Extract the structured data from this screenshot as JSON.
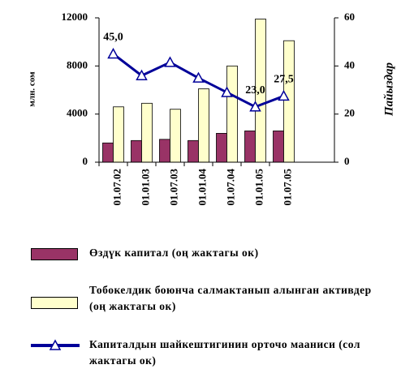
{
  "chart_data": {
    "type": "bar_line",
    "y_label": "млн. сом",
    "y2_label": "Пайыздар",
    "categories": [
      "01.07.02",
      "01.01.03",
      "01.07.03",
      "01.01.04",
      "01.07.04",
      "01.01.05",
      "01.07.05"
    ],
    "ylim": [
      0,
      12000
    ],
    "yticks": [
      0,
      4000,
      8000,
      12000
    ],
    "y2lim": [
      0,
      60
    ],
    "y2ticks": [
      0,
      20,
      40,
      60
    ],
    "series": [
      {
        "name": "Өздүк капитал (оң жактагы ок)",
        "color": "#993366",
        "values": [
          1600,
          1800,
          1900,
          1800,
          2400,
          2600,
          2600
        ]
      },
      {
        "name": "Тобокелдик боюнча салмактанып алынган активдер (оң жактагы ок)",
        "color": "#ffffcc",
        "values": [
          4600,
          4900,
          4400,
          6100,
          8000,
          11900,
          10100
        ]
      },
      {
        "name": "Капиталдын шайкештигинин орточо мааниси (сол жактагы ок)",
        "color": "#000099",
        "axis": "y2",
        "values": [
          45,
          36,
          41.5,
          35,
          29,
          23,
          27.5
        ],
        "value_labels": [
          "45,0",
          null,
          null,
          null,
          null,
          "23,0",
          "27,5"
        ]
      }
    ]
  }
}
